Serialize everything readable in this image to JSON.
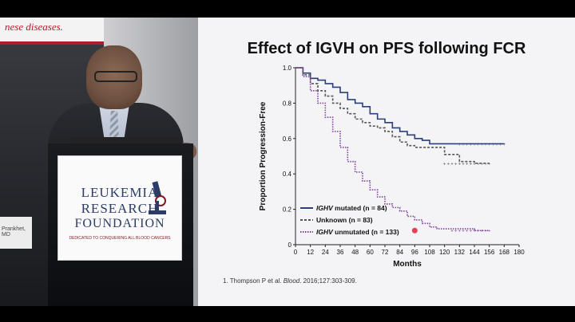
{
  "banner": {
    "text": "nese diseases."
  },
  "sign": {
    "text": "Prankhet, MD"
  },
  "logo": {
    "line1": "LEUKEMIA",
    "line2": "RESEARCH",
    "line3": "FOUNDATION",
    "tagline": "DEDICATED TO CONQUERING ALL BLOOD CANCERS"
  },
  "slide": {
    "title": "Effect of IGVH on PFS following FCR",
    "caption_prefix": "1. Thompson P et al. ",
    "caption_journal": "Blood",
    "caption_suffix": ". 2016;127:303-309."
  },
  "chart_data": {
    "type": "line",
    "xlabel": "Months",
    "ylabel": "Proportion Progression-Free",
    "x_ticks": [
      0,
      12,
      24,
      36,
      48,
      60,
      72,
      84,
      96,
      108,
      120,
      132,
      144,
      156,
      168,
      180
    ],
    "y_ticks": [
      0,
      0.2,
      0.4,
      0.6,
      0.8,
      1.0
    ],
    "y_tick_labels": [
      "0",
      "0.2",
      "0.4",
      "0.6",
      "0.8",
      "1.0"
    ],
    "xlim": [
      0,
      180
    ],
    "ylim": [
      0,
      1.0
    ],
    "legend_position": "bottom-left",
    "series": [
      {
        "name": "IGHV mutated (n = 84)",
        "color": "#2b3f7a",
        "style": "solid",
        "x": [
          0,
          6,
          12,
          18,
          24,
          30,
          36,
          42,
          48,
          54,
          60,
          66,
          72,
          78,
          84,
          90,
          96,
          102,
          108,
          120,
          132,
          144,
          156,
          168
        ],
        "y": [
          1.0,
          0.97,
          0.94,
          0.93,
          0.91,
          0.89,
          0.86,
          0.82,
          0.8,
          0.78,
          0.74,
          0.71,
          0.69,
          0.66,
          0.64,
          0.62,
          0.6,
          0.59,
          0.57,
          0.57,
          0.57,
          0.57,
          0.57,
          0.57
        ]
      },
      {
        "name": "Unknown (n = 83)",
        "color": "#555555",
        "style": "dashed",
        "x": [
          0,
          6,
          12,
          18,
          24,
          30,
          36,
          42,
          48,
          54,
          60,
          66,
          72,
          78,
          84,
          90,
          96,
          108,
          120,
          132,
          144,
          156
        ],
        "y": [
          1.0,
          0.96,
          0.91,
          0.87,
          0.84,
          0.8,
          0.77,
          0.74,
          0.71,
          0.69,
          0.67,
          0.66,
          0.64,
          0.61,
          0.58,
          0.56,
          0.55,
          0.55,
          0.51,
          0.47,
          0.46,
          0.46
        ]
      },
      {
        "name": "IGHV unmutated (n = 133)",
        "color": "#8040a0",
        "style": "dotted",
        "x": [
          0,
          6,
          12,
          18,
          24,
          30,
          36,
          42,
          48,
          54,
          60,
          66,
          72,
          78,
          84,
          90,
          96,
          102,
          108,
          114,
          120,
          126,
          132,
          144,
          156
        ],
        "y": [
          1.0,
          0.95,
          0.87,
          0.8,
          0.72,
          0.64,
          0.55,
          0.47,
          0.41,
          0.36,
          0.31,
          0.27,
          0.23,
          0.21,
          0.19,
          0.16,
          0.14,
          0.12,
          0.1,
          0.09,
          0.09,
          0.09,
          0.09,
          0.08,
          0.08
        ]
      }
    ],
    "legend": [
      {
        "italic": "IGHV",
        "rest": " mutated (n = 84)"
      },
      {
        "italic": "",
        "rest": "Unknown (n = 83)"
      },
      {
        "italic": "IGHV",
        "rest": " unmutated (n = 133)"
      }
    ]
  }
}
